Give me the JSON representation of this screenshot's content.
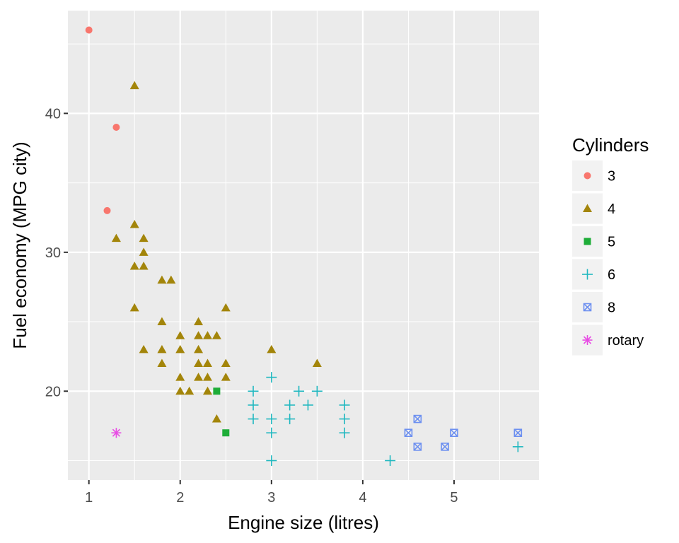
{
  "chart_data": {
    "type": "scatter",
    "title": "",
    "xlabel": "Engine size (litres)",
    "ylabel": "Fuel economy (MPG city)",
    "xlim": [
      0.77,
      5.93
    ],
    "ylim": [
      13.6,
      47.4
    ],
    "x_ticks": [
      1,
      2,
      3,
      4,
      5
    ],
    "y_ticks": [
      20,
      30,
      40
    ],
    "grid": true,
    "legend_title": "Cylinders",
    "legend_position": "right",
    "series": [
      {
        "name": "3",
        "color": "#F8766D",
        "shape": "circle",
        "points": [
          [
            1.0,
            46
          ],
          [
            1.3,
            39
          ],
          [
            1.2,
            33
          ]
        ]
      },
      {
        "name": "4",
        "color": "#A3850A",
        "shape": "triangle",
        "points": [
          [
            1.5,
            42
          ],
          [
            1.5,
            32
          ],
          [
            1.3,
            31
          ],
          [
            1.6,
            31
          ],
          [
            1.6,
            30
          ],
          [
            1.5,
            29
          ],
          [
            1.6,
            29
          ],
          [
            1.8,
            28
          ],
          [
            1.9,
            28
          ],
          [
            1.5,
            26
          ],
          [
            2.5,
            26
          ],
          [
            1.8,
            25
          ],
          [
            2.2,
            25
          ],
          [
            2.0,
            24
          ],
          [
            2.2,
            24
          ],
          [
            2.3,
            24
          ],
          [
            2.4,
            24
          ],
          [
            1.6,
            23
          ],
          [
            1.8,
            23
          ],
          [
            2.0,
            23
          ],
          [
            2.2,
            23
          ],
          [
            3.0,
            23
          ],
          [
            1.8,
            22
          ],
          [
            2.2,
            22
          ],
          [
            2.3,
            22
          ],
          [
            2.5,
            22
          ],
          [
            3.5,
            22
          ],
          [
            2.0,
            21
          ],
          [
            2.2,
            21
          ],
          [
            2.3,
            21
          ],
          [
            2.5,
            21
          ],
          [
            2.0,
            20
          ],
          [
            2.1,
            20
          ],
          [
            2.3,
            20
          ],
          [
            2.4,
            18
          ]
        ]
      },
      {
        "name": "5",
        "color": "#1EAD38",
        "shape": "square",
        "points": [
          [
            2.4,
            20
          ],
          [
            2.5,
            17
          ]
        ]
      },
      {
        "name": "6",
        "color": "#20B8C0",
        "shape": "plus",
        "points": [
          [
            3.0,
            21
          ],
          [
            2.8,
            20
          ],
          [
            3.3,
            20
          ],
          [
            3.5,
            20
          ],
          [
            2.8,
            19
          ],
          [
            3.2,
            19
          ],
          [
            3.4,
            19
          ],
          [
            3.8,
            19
          ],
          [
            2.8,
            18
          ],
          [
            3.0,
            18
          ],
          [
            3.2,
            18
          ],
          [
            3.8,
            18
          ],
          [
            3.0,
            17
          ],
          [
            3.8,
            17
          ],
          [
            3.0,
            15
          ],
          [
            4.3,
            15
          ],
          [
            5.7,
            16
          ]
        ]
      },
      {
        "name": "8",
        "color": "#6D90F0",
        "shape": "square-x",
        "points": [
          [
            4.6,
            18
          ],
          [
            4.5,
            17
          ],
          [
            5.0,
            17
          ],
          [
            5.7,
            17
          ],
          [
            4.6,
            16
          ],
          [
            4.9,
            16
          ]
        ]
      },
      {
        "name": "rotary",
        "color": "#E84BE4",
        "shape": "asterisk",
        "points": [
          [
            1.3,
            17
          ]
        ]
      }
    ]
  }
}
